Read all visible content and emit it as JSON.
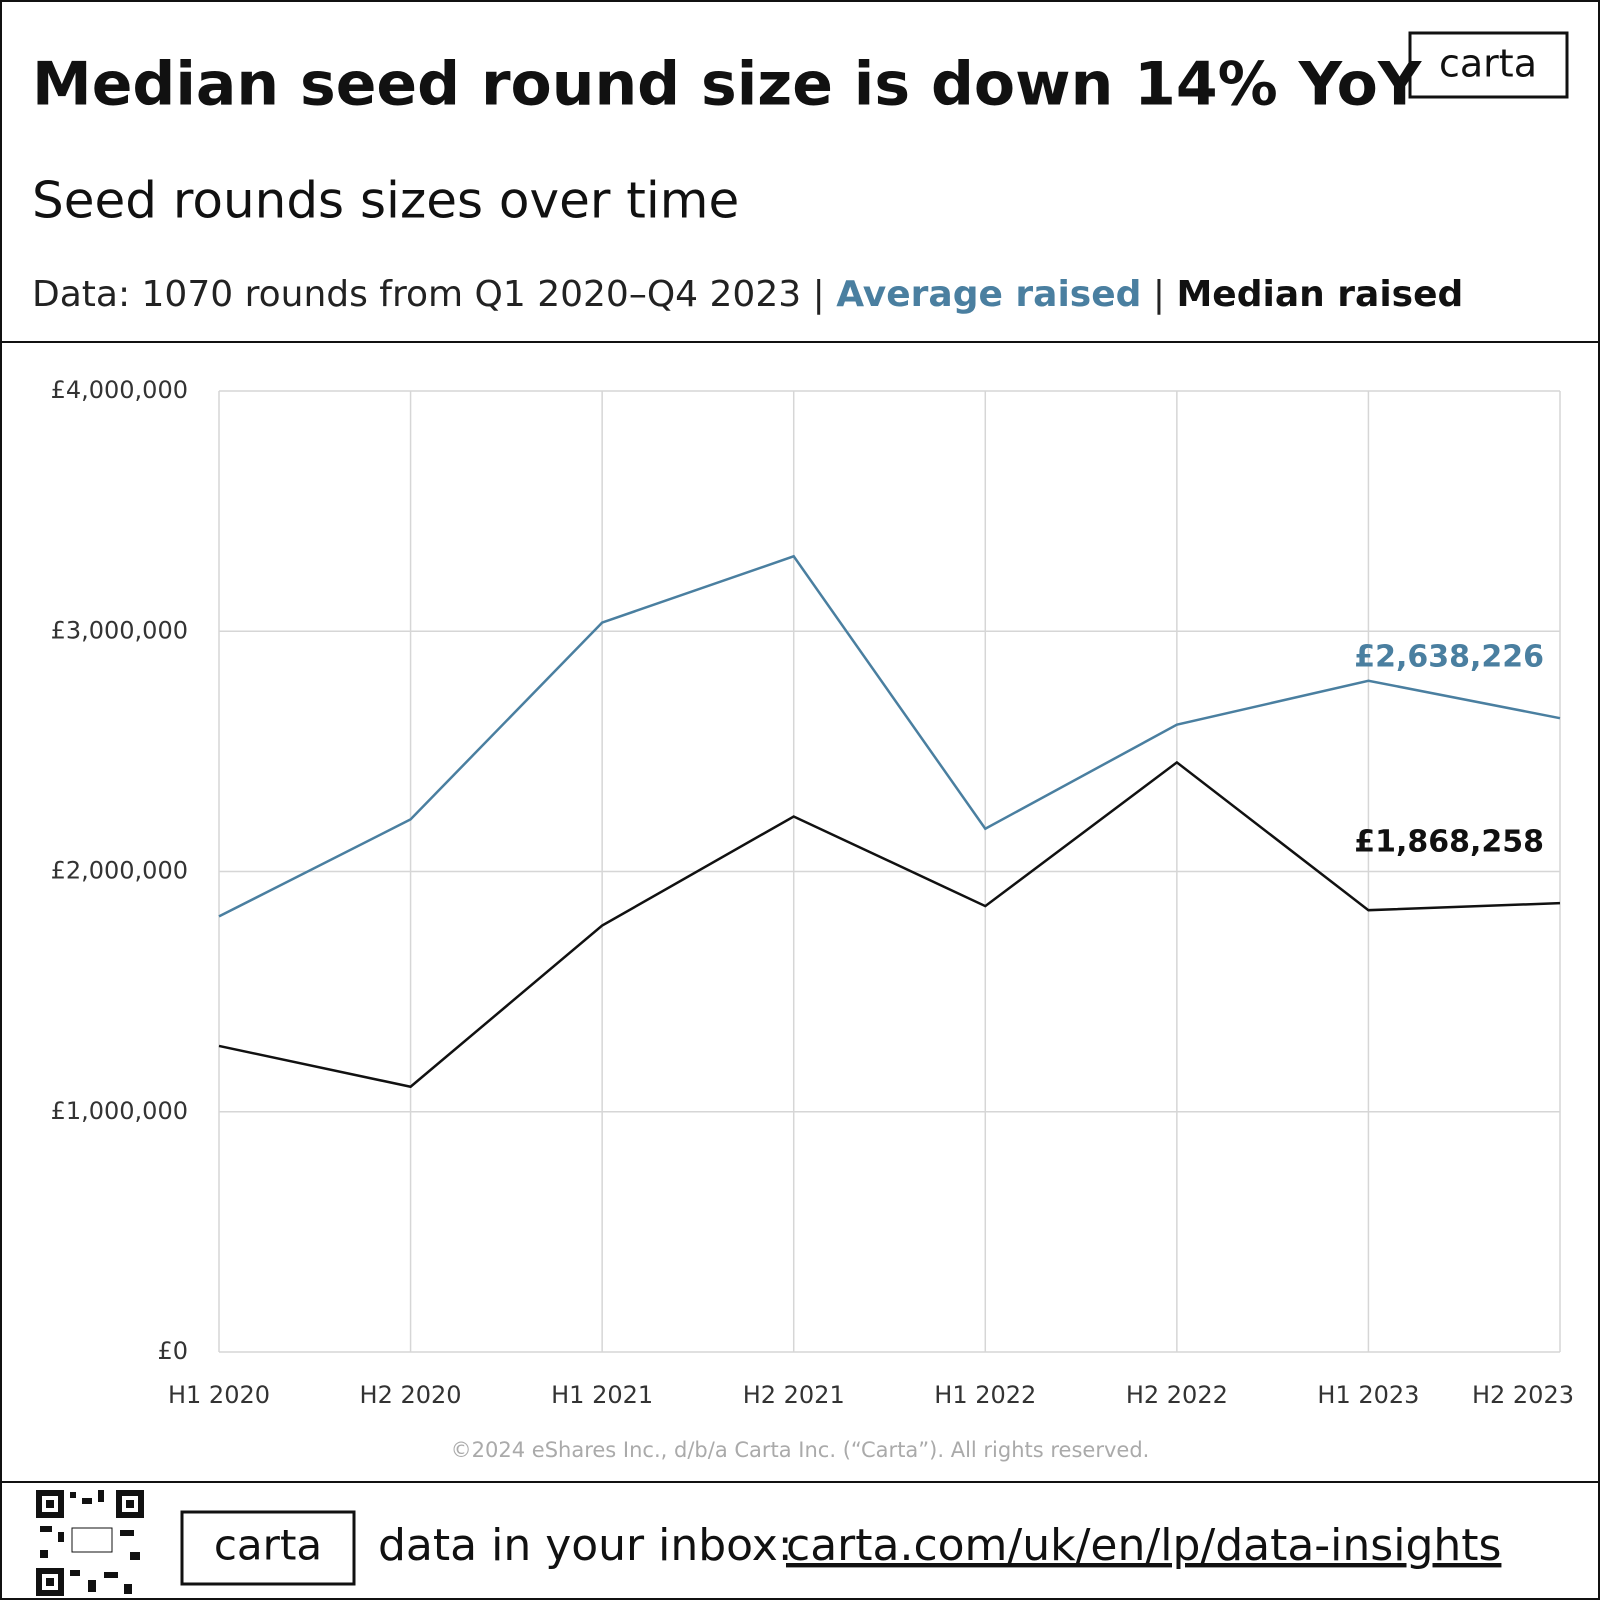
{
  "page": {
    "logo": "carta",
    "copyright": "©2024 eShares Inc., d/b/a Carta Inc. (“Carta”). All rights reserved.",
    "footer_logo": "carta",
    "footer_text": "data in your inbox:",
    "footer_link": "carta.com/uk/en/lp/data-insights"
  },
  "chart_data": {
    "type": "line",
    "title": "Median seed round size is down 14% YoY",
    "subtitle": "Seed rounds sizes over time",
    "note": "Data: 1070 rounds from Q1 2020–Q4 2023",
    "legend_separator": "|",
    "categories": [
      "H1 2020",
      "H2 2020",
      "H1 2021",
      "H2 2021",
      "H1 2022",
      "H2 2022",
      "H1 2023",
      "H2 2023"
    ],
    "series": [
      {
        "name": "Average raised",
        "color": "#4a7fa0",
        "values": [
          1813000,
          2217000,
          3036000,
          3312000,
          2178000,
          2611000,
          2794000,
          2638226
        ],
        "value_labels": [
          null,
          null,
          null,
          null,
          null,
          null,
          null,
          "£2,638,226"
        ]
      },
      {
        "name": "Median raised",
        "color": "#111111",
        "values": [
          1274000,
          1104000,
          1775000,
          2229000,
          1856000,
          2454000,
          1839000,
          1868258
        ],
        "value_labels": [
          null,
          null,
          null,
          null,
          null,
          null,
          null,
          "£1,868,258"
        ]
      }
    ],
    "ylim": [
      0,
      4000000
    ],
    "yticks": [
      {
        "value": 0,
        "label": "£0"
      },
      {
        "value": 1000000,
        "label": "£1,000,000"
      },
      {
        "value": 2000000,
        "label": "£2,000,000"
      },
      {
        "value": 3000000,
        "label": "£3,000,000"
      },
      {
        "value": 4000000,
        "label": "£4,000,000"
      }
    ],
    "grid": true
  }
}
